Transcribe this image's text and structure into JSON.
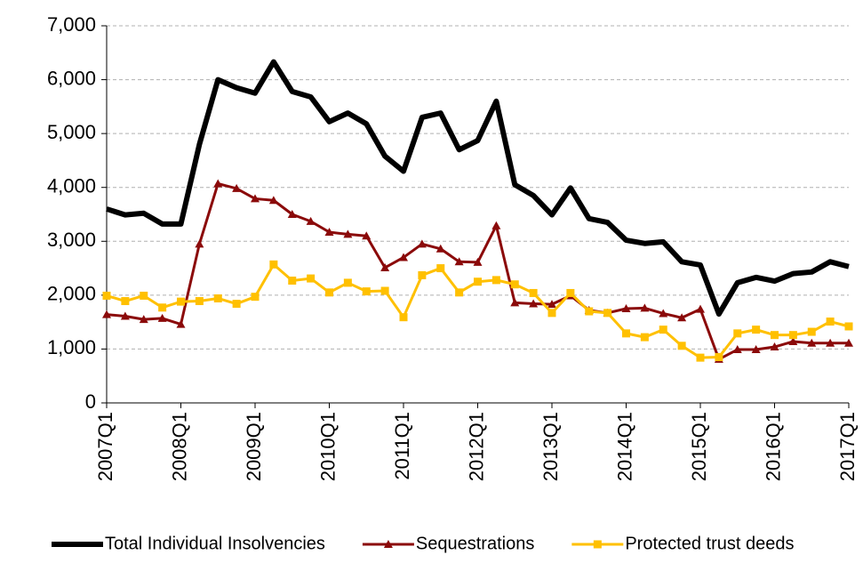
{
  "chart_data": {
    "type": "line",
    "categories": [
      "2007Q1",
      null,
      null,
      null,
      "2008Q1",
      null,
      null,
      null,
      "2009Q1",
      null,
      null,
      null,
      "2010Q1",
      null,
      null,
      null,
      "2011Q1",
      null,
      null,
      null,
      "2012Q1",
      null,
      null,
      null,
      "2013Q1",
      null,
      null,
      null,
      "2014Q1",
      null,
      null,
      null,
      "2015Q1",
      null,
      null,
      null,
      "2016Q1",
      null,
      null,
      null,
      "2017Q1"
    ],
    "series": [
      {
        "name": "Total Individual Insolvencies",
        "color": "#000000",
        "marker": "none",
        "values": [
          3600,
          3490,
          3520,
          3320,
          3320,
          4800,
          6000,
          5850,
          5750,
          6330,
          5780,
          5680,
          5220,
          5380,
          5180,
          4580,
          4300,
          5300,
          5380,
          4700,
          4870,
          5600,
          4050,
          3850,
          3490,
          3990,
          3420,
          3350,
          3020,
          2960,
          2990,
          2620,
          2560,
          1650,
          2230,
          2330,
          2260,
          2400,
          2430,
          2620,
          2530
        ]
      },
      {
        "name": "Sequestrations",
        "color": "#8b0a0a",
        "marker": "triangle",
        "values": [
          1640,
          1610,
          1550,
          1570,
          1460,
          2950,
          4070,
          3980,
          3790,
          3760,
          3500,
          3370,
          3170,
          3130,
          3100,
          2510,
          2700,
          2950,
          2860,
          2620,
          2610,
          3290,
          1860,
          1840,
          1830,
          1990,
          1720,
          1670,
          1750,
          1760,
          1660,
          1580,
          1740,
          810,
          990,
          990,
          1040,
          1140,
          1110,
          1110,
          1110
        ]
      },
      {
        "name": "Protected trust deeds",
        "color": "#ffc000",
        "marker": "square",
        "values": [
          1990,
          1890,
          1990,
          1770,
          1880,
          1890,
          1940,
          1840,
          1970,
          2570,
          2270,
          2310,
          2050,
          2230,
          2070,
          2080,
          1590,
          2370,
          2500,
          2050,
          2250,
          2280,
          2200,
          2040,
          1670,
          2040,
          1700,
          1670,
          1290,
          1220,
          1360,
          1060,
          840,
          850,
          1290,
          1360,
          1260,
          1260,
          1320,
          1510,
          1420
        ]
      }
    ],
    "ylim": [
      0,
      7000
    ],
    "yticks": [
      0,
      {
        "value": 1000,
        "label": "1,000"
      },
      {
        "value": 2000,
        "label": "2,000"
      },
      {
        "value": 3000,
        "label": "3,000"
      },
      {
        "value": 4000,
        "label": "4,000"
      },
      {
        "value": 5000,
        "label": "5,000"
      },
      {
        "value": 6000,
        "label": "6,000"
      },
      {
        "value": 7000,
        "label": "7,000"
      }
    ],
    "grid": true,
    "legend": "bottom"
  }
}
